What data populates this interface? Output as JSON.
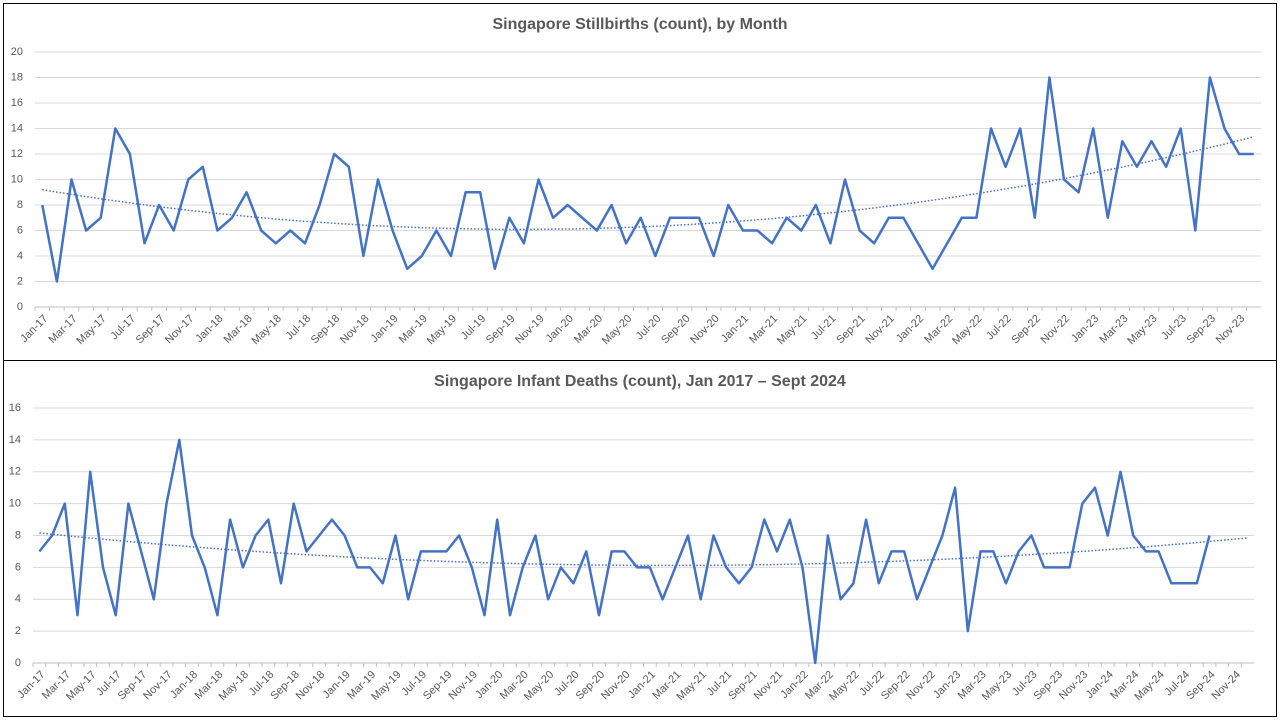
{
  "chart_data": [
    {
      "type": "line",
      "title": "Singapore Stillbirths (count), by Month",
      "categories": [
        "Jan-17",
        null,
        "Mar-17",
        null,
        "May-17",
        null,
        "Jul-17",
        null,
        "Sep-17",
        null,
        "Nov-17",
        null,
        "Jan-18",
        null,
        "Mar-18",
        null,
        "May-18",
        null,
        "Jul-18",
        null,
        "Sep-18",
        null,
        "Nov-18",
        null,
        "Jan-19",
        null,
        "Mar-19",
        null,
        "May-19",
        null,
        "Jul-19",
        null,
        "Sep-19",
        null,
        "Nov-19",
        null,
        "Jan-20",
        null,
        "Mar-20",
        null,
        "May-20",
        null,
        "Jul-20",
        null,
        "Sep-20",
        null,
        "Nov-20",
        null,
        "Jan-21",
        null,
        "Mar-21",
        null,
        "May-21",
        null,
        "Jul-21",
        null,
        "Sep-21",
        null,
        "Nov-21",
        null,
        "Jan-22",
        null,
        "Mar-22",
        null,
        "May-22",
        null,
        "Jul-22",
        null,
        "Sep-22",
        null,
        "Nov-22",
        null,
        "Jan-23",
        null,
        "Mar-23",
        null,
        "May-23",
        null,
        "Jul-23",
        null,
        "Sep-23",
        null,
        "Nov-23",
        null
      ],
      "series": [
        {
          "color": "#4472c4",
          "values": [
            8,
            2,
            10,
            6,
            7,
            14,
            12,
            5,
            8,
            6,
            10,
            11,
            6,
            7,
            9,
            6,
            5,
            6,
            5,
            8,
            12,
            11,
            4,
            10,
            6,
            3,
            4,
            6,
            4,
            9,
            9,
            3,
            7,
            5,
            10,
            7,
            8,
            7,
            6,
            8,
            5,
            7,
            4,
            7,
            7,
            7,
            4,
            8,
            6,
            6,
            5,
            7,
            6,
            8,
            5,
            10,
            6,
            5,
            7,
            7,
            5,
            3,
            5,
            7,
            7,
            14,
            11,
            14,
            7,
            18,
            10,
            9,
            14,
            7,
            13,
            11,
            13,
            11,
            14,
            6,
            18,
            14,
            12,
            12
          ]
        }
      ],
      "trendline": {
        "order": 2,
        "color": "#4472c4"
      },
      "ylim": [
        0,
        20
      ],
      "yticks": [
        0,
        2,
        4,
        6,
        8,
        10,
        12,
        14,
        16,
        18,
        20
      ],
      "grid": true
    },
    {
      "type": "line",
      "title": "Singapore Infant Deaths (count), Jan 2017 – Sept 2024",
      "categories": [
        "Jan-17",
        null,
        "Mar-17",
        null,
        "May-17",
        null,
        "Jul-17",
        null,
        "Sep-17",
        null,
        "Nov-17",
        null,
        "Jan-18",
        null,
        "Mar-18",
        null,
        "May-18",
        null,
        "Jul-18",
        null,
        "Sep-18",
        null,
        "Nov-18",
        null,
        "Jan-19",
        null,
        "Mar-19",
        null,
        "May-19",
        null,
        "Jul-19",
        null,
        "Sep-19",
        null,
        "Nov-19",
        null,
        "Jan-20",
        null,
        "Mar-20",
        null,
        "May-20",
        null,
        "Jul-20",
        null,
        "Sep-20",
        null,
        "Nov-20",
        null,
        "Jan-21",
        null,
        "Mar-21",
        null,
        "May-21",
        null,
        "Jul-21",
        null,
        "Sep-21",
        null,
        "Nov-21",
        null,
        "Jan-22",
        null,
        "Mar-22",
        null,
        "May-22",
        null,
        "Jul-22",
        null,
        "Sep-22",
        null,
        "Nov-22",
        null,
        "Jan-23",
        null,
        "Mar-23",
        null,
        "May-23",
        null,
        "Jul-23",
        null,
        "Sep-23",
        null,
        "Nov-23",
        null,
        "Jan-24",
        null,
        "Mar-24",
        null,
        "May-24",
        null,
        "Jul-24",
        null,
        "Sep-24",
        null,
        "Nov-24",
        null
      ],
      "series": [
        {
          "color": "#4472c4",
          "values": [
            7,
            8,
            10,
            3,
            12,
            6,
            3,
            10,
            7,
            4,
            10,
            14,
            8,
            6,
            3,
            9,
            6,
            8,
            9,
            5,
            10,
            7,
            8,
            9,
            8,
            6,
            6,
            5,
            8,
            4,
            7,
            7,
            7,
            8,
            6,
            3,
            9,
            3,
            6,
            8,
            4,
            6,
            5,
            7,
            3,
            7,
            7,
            6,
            6,
            4,
            6,
            8,
            4,
            8,
            6,
            5,
            6,
            9,
            7,
            9,
            6,
            0,
            8,
            4,
            5,
            9,
            5,
            7,
            7,
            4,
            6,
            8,
            11,
            2,
            7,
            7,
            5,
            7,
            8,
            6,
            6,
            6,
            10,
            11,
            8,
            12,
            8,
            7,
            7,
            5,
            5,
            5,
            8,
            null,
            null,
            null
          ]
        }
      ],
      "trendline": {
        "order": 2,
        "color": "#4472c4"
      },
      "ylim": [
        0,
        16
      ],
      "yticks": [
        0,
        2,
        4,
        6,
        8,
        10,
        12,
        14,
        16
      ],
      "grid": true
    }
  ]
}
